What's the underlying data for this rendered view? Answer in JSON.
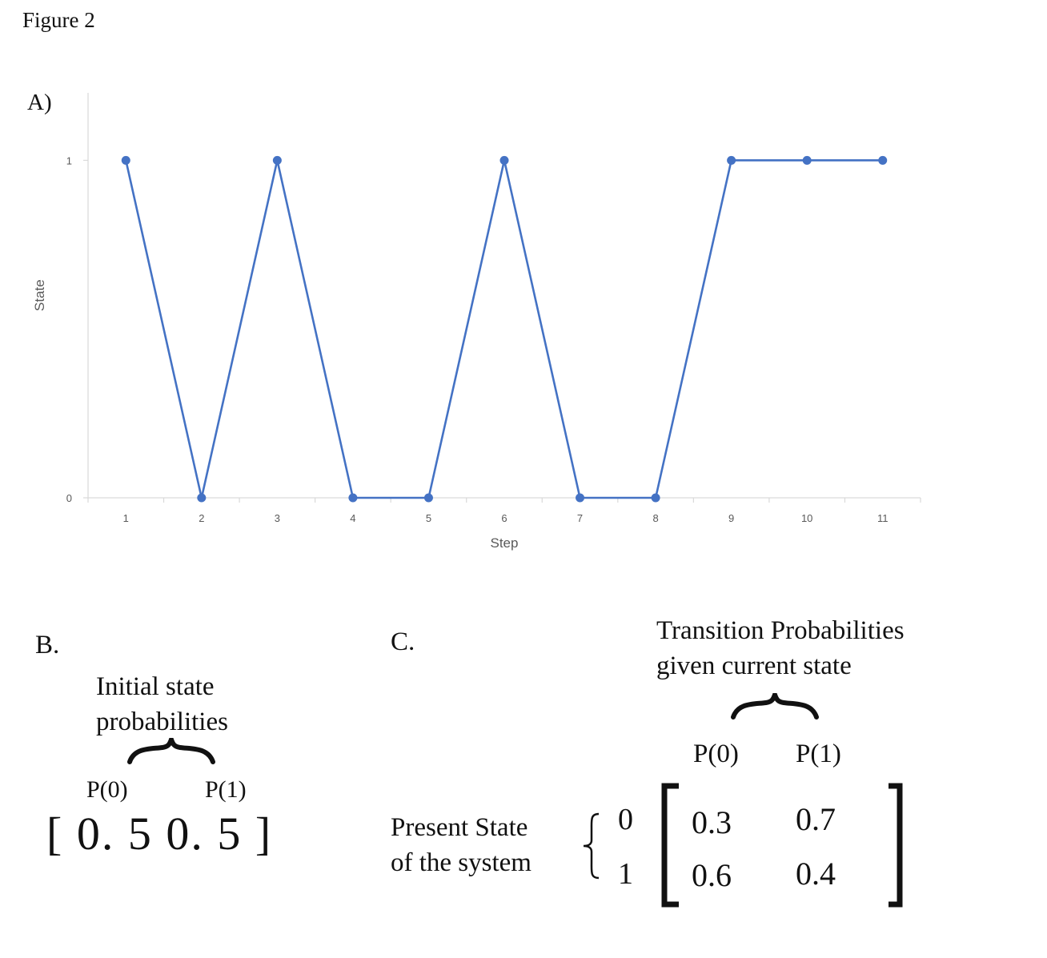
{
  "figure_title": "Figure 2",
  "panels": {
    "a": {
      "label": "A)"
    },
    "b": {
      "label": "B.",
      "title_line1": "Initial state",
      "title_line2": "probabilities",
      "p0_label": "P(0)",
      "p1_label": "P(1)",
      "vector_text": "[ 0. 5  0. 5 ]"
    },
    "c": {
      "label": "C.",
      "title_line1": "Transition Probabilities",
      "title_line2": "given current state",
      "col0_label": "P(0)",
      "col1_label": "P(1)",
      "row_title_line1": "Present State",
      "row_title_line2": "of the system",
      "row0_label": "0",
      "row1_label": "1",
      "matrix": [
        [
          "0.3",
          "0.7"
        ],
        [
          "0.6",
          "0.4"
        ]
      ]
    }
  },
  "chart_data": {
    "type": "line",
    "x": [
      1,
      2,
      3,
      4,
      5,
      6,
      7,
      8,
      9,
      10,
      11
    ],
    "series": [
      {
        "values": [
          1,
          0,
          1,
          0,
          0,
          1,
          0,
          0,
          1,
          1,
          1
        ],
        "color": "#4472C4"
      }
    ],
    "x_tick_labels": [
      "1",
      "2",
      "3",
      "4",
      "5",
      "6",
      "7",
      "8",
      "9",
      "10",
      "11"
    ],
    "y_tick_labels": [
      "0",
      "1"
    ],
    "y_ticks": [
      0,
      1
    ],
    "xlabel": "Step",
    "ylabel": "State",
    "ylim": [
      0,
      1.2
    ],
    "markers": true,
    "grid": false,
    "legend": false
  }
}
